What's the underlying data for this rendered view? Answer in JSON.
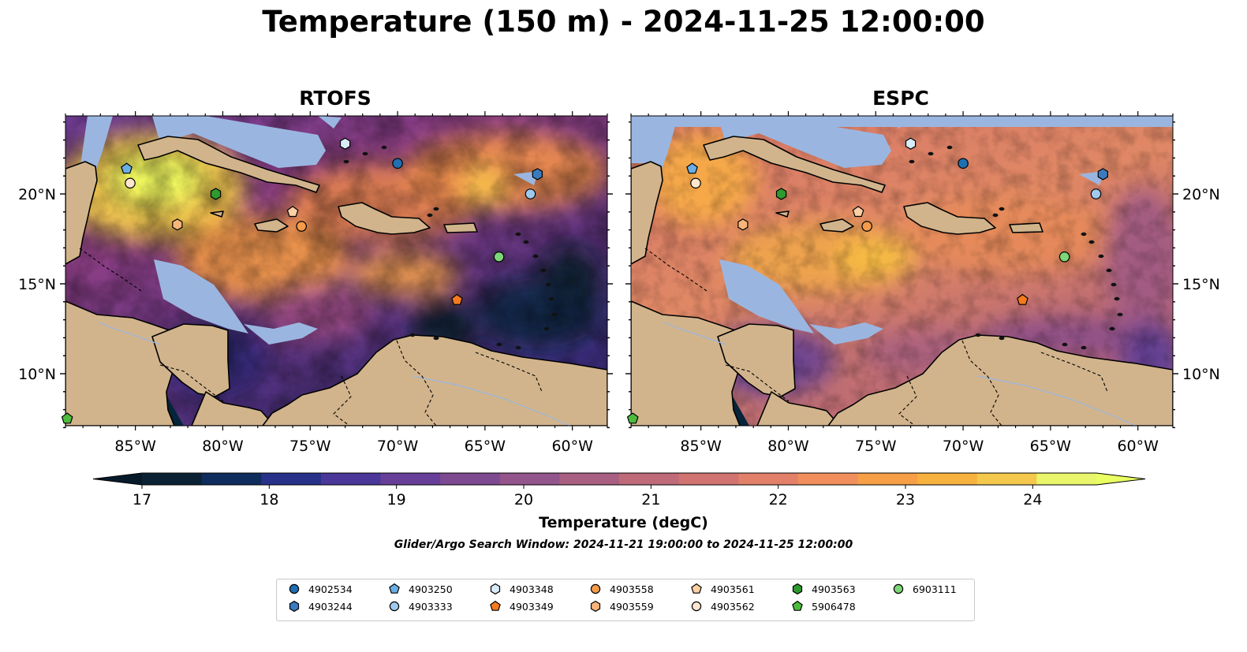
{
  "title": "Temperature (150 m) - 2024-11-25 12:00:00",
  "panels": [
    {
      "title": "RTOFS",
      "style": "rtofs"
    },
    {
      "title": "ESPC",
      "style": "espc"
    }
  ],
  "lat_labels": [
    "20°N",
    "15°N",
    "10°N"
  ],
  "lon_labels": [
    "85°W",
    "80°W",
    "75°W",
    "70°W",
    "65°W",
    "60°W"
  ],
  "colorbar": {
    "label": "Temperature (degC)",
    "ticks": [
      "17",
      "18",
      "19",
      "20",
      "21",
      "22",
      "23",
      "24"
    ],
    "min": 17,
    "max": 24.5,
    "step": 0.5,
    "colors": [
      "#0a2234",
      "#0e2c5c",
      "#27318a",
      "#4a3799",
      "#673f98",
      "#7d4a91",
      "#93558b",
      "#a85f82",
      "#be6a78",
      "#d17370",
      "#e2806a",
      "#f08f5c",
      "#f69f47",
      "#f7b13e",
      "#f4c84c",
      "#e9f56a"
    ],
    "under_color": "#061a2a",
    "over_color": "#eaff62"
  },
  "search_window": "Glider/Argo Search Window: 2024-11-21 19:00:00 to 2024-11-25 12:00:00",
  "colors": {
    "ocean_shelf": "#9ab6e0",
    "land": "#d2b48c",
    "deep_outside": "#06243a"
  },
  "floats": [
    {
      "id": "4902534",
      "shape": "circle",
      "color": "#1f6fb2",
      "lon": -70.0,
      "lat": 21.7
    },
    {
      "id": "4903244",
      "shape": "hexagon",
      "color": "#3a7bbf",
      "lon": -62.0,
      "lat": 21.1
    },
    {
      "id": "4903250",
      "shape": "pentagon",
      "color": "#6aaee4",
      "lon": -85.5,
      "lat": 21.4
    },
    {
      "id": "4903333",
      "shape": "circle",
      "color": "#9fcaee",
      "lon": -62.4,
      "lat": 20.0
    },
    {
      "id": "4903348",
      "shape": "hexagon",
      "color": "#d8ebf8",
      "lon": -73.0,
      "lat": 22.8
    },
    {
      "id": "4903349",
      "shape": "pentagon",
      "color": "#f47a1e",
      "lon": -66.6,
      "lat": 14.1
    },
    {
      "id": "4903558",
      "shape": "circle",
      "color": "#f59b49",
      "lon": -75.5,
      "lat": 18.2
    },
    {
      "id": "4903559",
      "shape": "hexagon",
      "color": "#f8b47a",
      "lon": -82.6,
      "lat": 18.3
    },
    {
      "id": "4903561",
      "shape": "pentagon",
      "color": "#fbd0a4",
      "lon": -76.0,
      "lat": 19.0
    },
    {
      "id": "4903562",
      "shape": "circle",
      "color": "#fde7cf",
      "lon": -85.3,
      "lat": 20.6
    },
    {
      "id": "4903563",
      "shape": "hexagon",
      "color": "#2f9a2f",
      "lon": -80.4,
      "lat": 20.0
    },
    {
      "id": "5906478",
      "shape": "pentagon",
      "color": "#4cbc3c",
      "lon": -88.9,
      "lat": 7.5
    },
    {
      "id": "6903111",
      "shape": "circle",
      "color": "#7dd677",
      "lon": -64.2,
      "lat": 16.5
    }
  ],
  "legend_order": [
    "4902534",
    "4903244",
    "4903250",
    "4903333",
    "4903348",
    "4903349",
    "4903558",
    "4903559",
    "4903561",
    "4903562",
    "4903563",
    "5906478",
    "6903111"
  ]
}
